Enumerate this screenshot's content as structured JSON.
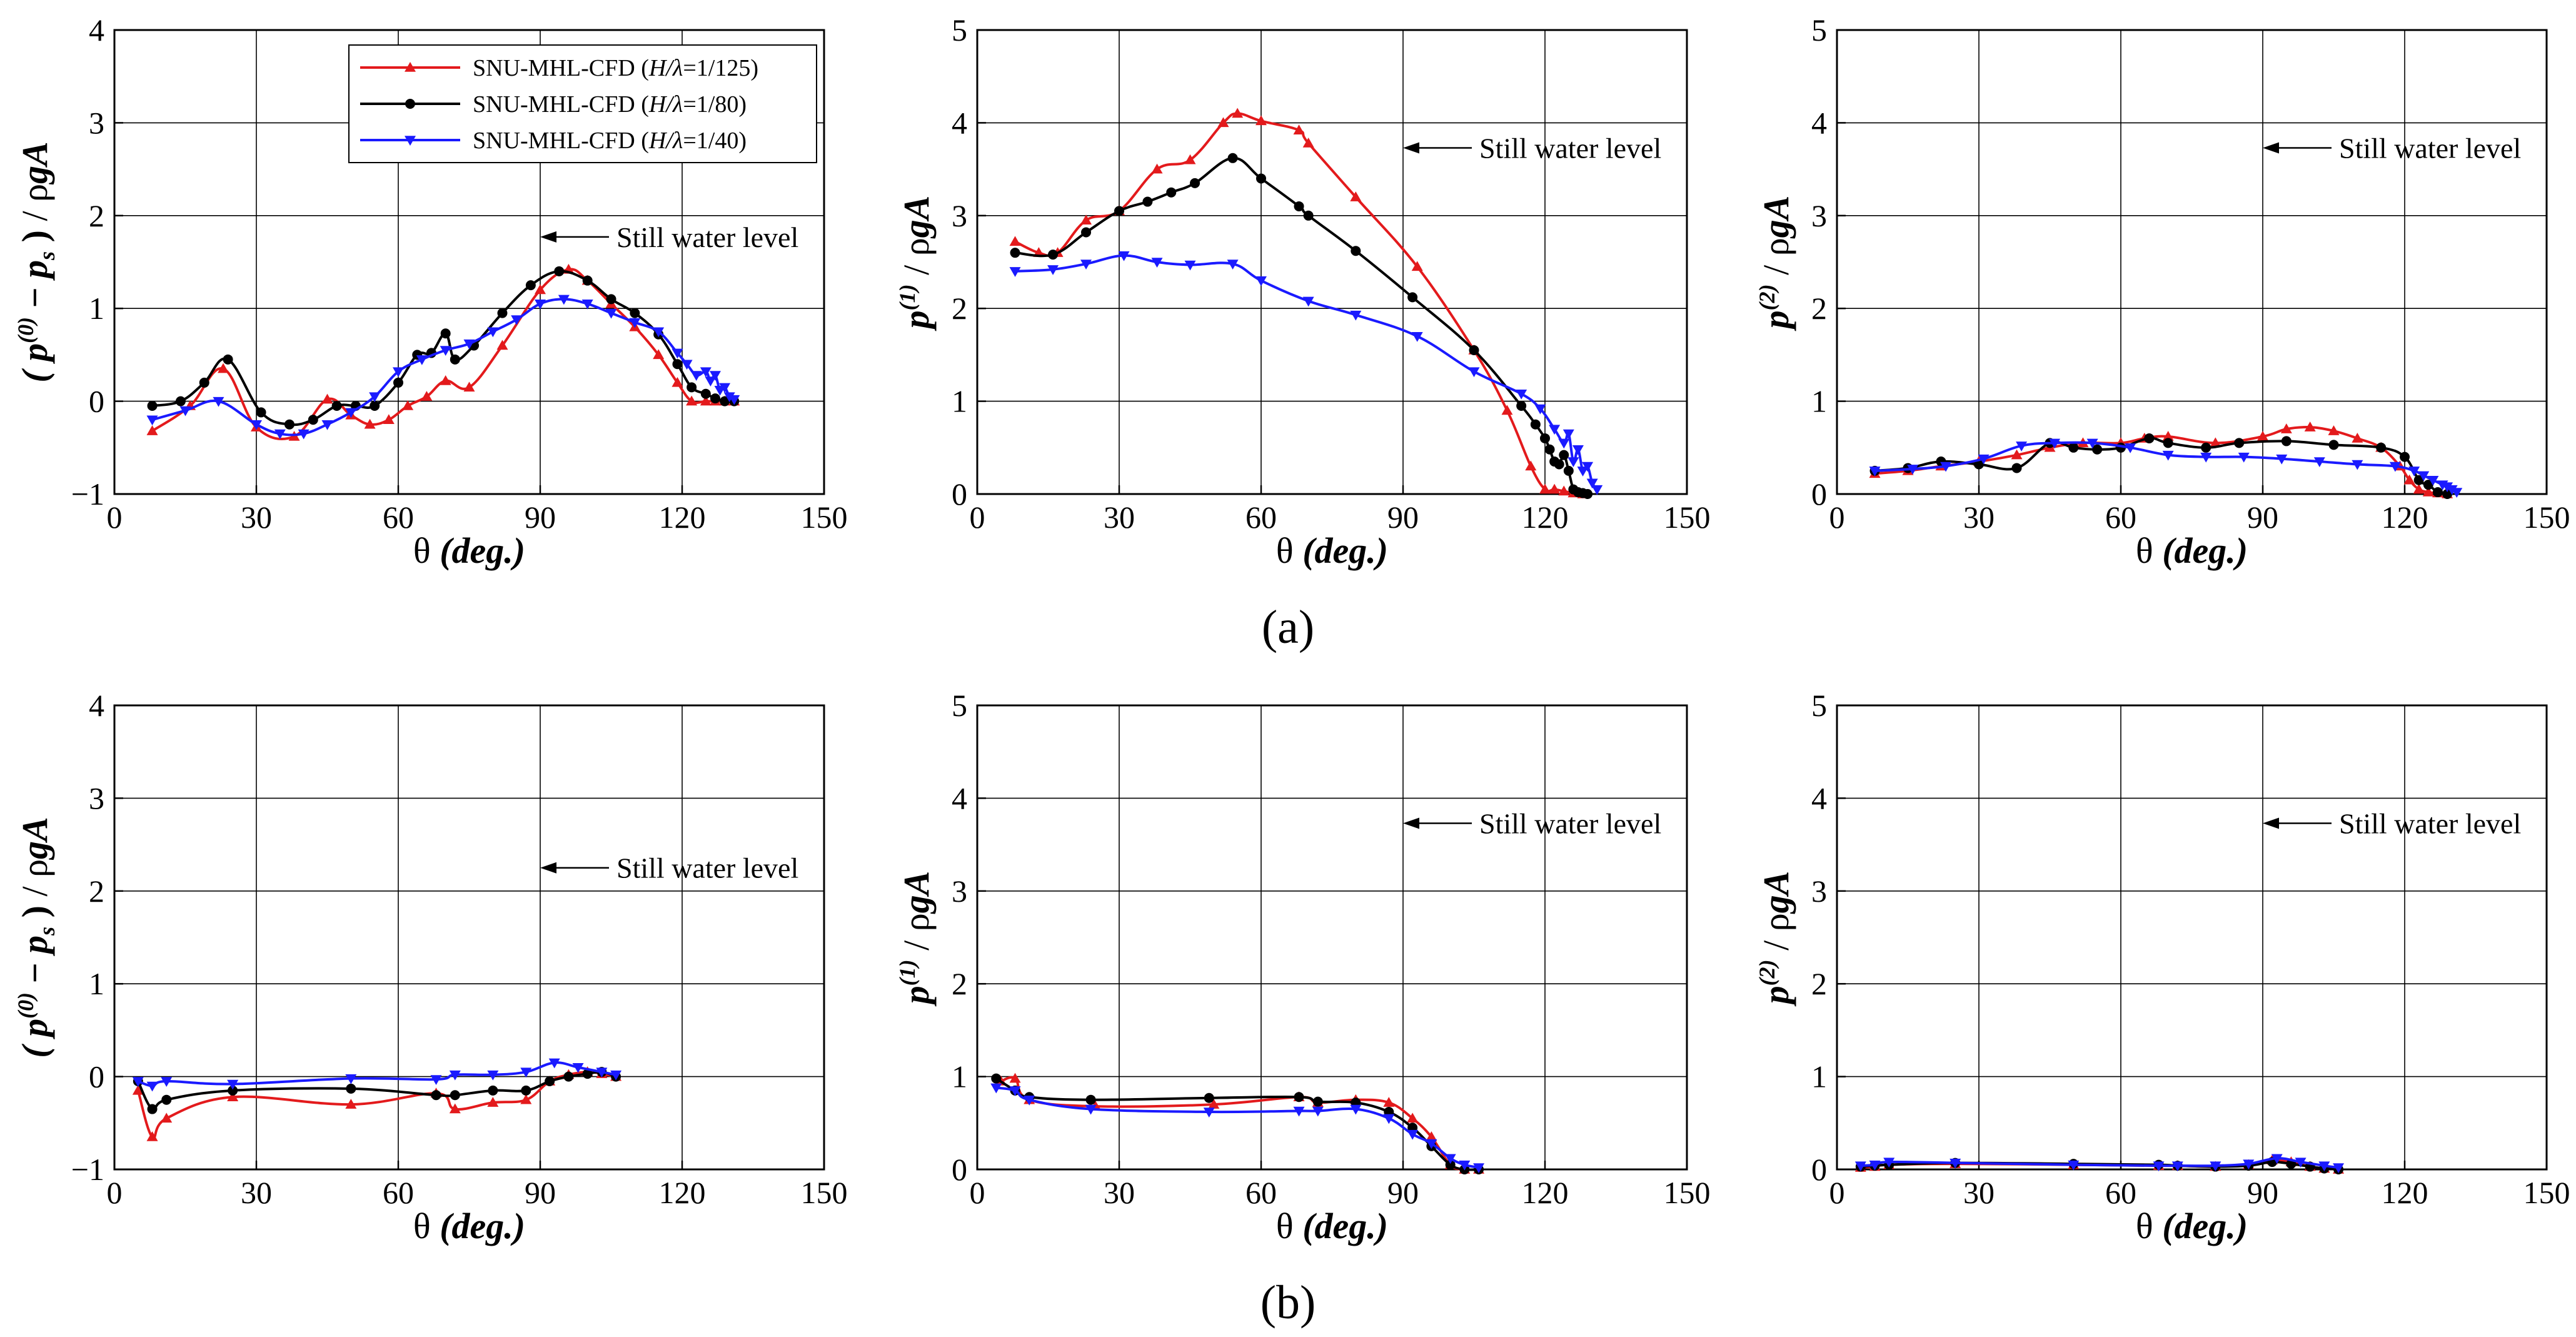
{
  "series_styles": [
    {
      "name": "SNU-MHL-CFD (H/λ=1/125)",
      "name_prefix": "SNU-MHL-CFD (",
      "name_italic": "H/λ",
      "name_suffix": "=1/125)",
      "color": "#e31a1c",
      "marker": "triangle-up"
    },
    {
      "name": "SNU-MHL-CFD (H/λ=1/80)",
      "name_prefix": "SNU-MHL-CFD (",
      "name_italic": "H/λ",
      "name_suffix": "=1/80)",
      "color": "#000000",
      "marker": "circle"
    },
    {
      "name": "SNU-MHL-CFD (H/λ=1/40)",
      "name_prefix": "SNU-MHL-CFD (",
      "name_italic": "H/λ",
      "name_suffix": "=1/40)",
      "color": "#1a1aff",
      "marker": "triangle-down"
    }
  ],
  "panel_labels": [
    "(a)",
    "(b)"
  ],
  "chart_data": [
    {
      "type": "line",
      "row": "a",
      "legend": "top-right",
      "xlabel": "θ (deg.)",
      "xlabel_prefix": "θ ",
      "xlabel_italic": "(deg.)",
      "ylabel": "( p(0) − ps ) / ρgA",
      "xlim": [
        0,
        150
      ],
      "ylim": [
        -1,
        4
      ],
      "xticks": [
        0,
        30,
        60,
        90,
        120,
        150
      ],
      "yticks": [
        -1,
        0,
        1,
        2,
        3,
        4
      ],
      "xtick_labels": [
        "0",
        "30",
        "60",
        "90",
        "120",
        "150"
      ],
      "ytick_labels": [
        "−1",
        "0",
        "1",
        "2",
        "3",
        "4"
      ],
      "grid": true,
      "annotation": {
        "text": "Still water level",
        "x": 90,
        "y": 1.77
      },
      "series": [
        {
          "x": [
            8,
            16,
            23,
            30,
            38,
            45,
            50,
            54,
            58,
            62,
            66,
            70,
            75,
            82,
            90,
            96,
            100,
            105,
            110,
            115,
            119,
            122,
            125,
            127,
            129,
            131
          ],
          "y": [
            -0.32,
            -0.05,
            0.35,
            -0.28,
            -0.38,
            0.02,
            -0.15,
            -0.25,
            -0.2,
            -0.05,
            0.05,
            0.22,
            0.15,
            0.6,
            1.2,
            1.42,
            1.3,
            1.05,
            0.8,
            0.5,
            0.2,
            0.0,
            0.0,
            0.0,
            0.0,
            0.0
          ]
        },
        {
          "x": [
            8,
            14,
            19,
            24,
            31,
            37,
            42,
            47,
            51,
            55,
            60,
            64,
            67,
            70,
            72,
            76,
            82,
            88,
            94,
            100,
            105,
            110,
            115,
            119,
            122,
            125,
            127,
            129,
            131
          ],
          "y": [
            -0.05,
            0.0,
            0.2,
            0.45,
            -0.12,
            -0.25,
            -0.2,
            -0.05,
            -0.05,
            -0.05,
            0.2,
            0.5,
            0.52,
            0.73,
            0.45,
            0.6,
            0.95,
            1.25,
            1.4,
            1.3,
            1.1,
            0.95,
            0.72,
            0.4,
            0.15,
            0.08,
            0.03,
            0.0,
            0.0
          ]
        },
        {
          "x": [
            8,
            15,
            22,
            30,
            35,
            40,
            45,
            50,
            55,
            60,
            65,
            70,
            75,
            80,
            85,
            90,
            95,
            100,
            105,
            110,
            115,
            119,
            121,
            123,
            125,
            126,
            127,
            128,
            129,
            130,
            131
          ],
          "y": [
            -0.2,
            -0.1,
            0.0,
            -0.25,
            -0.35,
            -0.35,
            -0.25,
            -0.12,
            0.05,
            0.32,
            0.45,
            0.55,
            0.62,
            0.75,
            0.88,
            1.05,
            1.1,
            1.05,
            0.95,
            0.85,
            0.75,
            0.52,
            0.4,
            0.28,
            0.32,
            0.22,
            0.28,
            0.12,
            0.15,
            0.05,
            0.02
          ]
        }
      ]
    },
    {
      "type": "line",
      "row": "a",
      "xlabel": "θ (deg.)",
      "xlabel_prefix": "θ ",
      "xlabel_italic": "(deg.)",
      "ylabel": "p(1) / ρgA",
      "xlim": [
        0,
        150
      ],
      "ylim": [
        0,
        5
      ],
      "xticks": [
        0,
        30,
        60,
        90,
        120,
        150
      ],
      "yticks": [
        0,
        1,
        2,
        3,
        4,
        5
      ],
      "xtick_labels": [
        "0",
        "30",
        "60",
        "90",
        "120",
        "150"
      ],
      "ytick_labels": [
        "0",
        "1",
        "2",
        "3",
        "4",
        "5"
      ],
      "grid": true,
      "annotation": {
        "text": "Still water level",
        "x": 90,
        "y": 3.73
      },
      "series": [
        {
          "x": [
            8,
            13,
            17,
            23,
            30,
            38,
            45,
            52,
            55,
            60,
            68,
            70,
            80,
            93,
            105,
            112,
            117,
            120,
            122,
            124,
            126,
            128
          ],
          "y": [
            2.72,
            2.6,
            2.6,
            2.95,
            3.05,
            3.5,
            3.6,
            4.0,
            4.1,
            4.02,
            3.92,
            3.78,
            3.2,
            2.45,
            1.55,
            0.9,
            0.3,
            0.05,
            0.05,
            0.03,
            0.01,
            0.0
          ]
        },
        {
          "x": [
            8,
            16,
            23,
            30,
            36,
            41,
            46,
            54,
            60,
            68,
            70,
            80,
            92,
            105,
            115,
            118,
            120,
            121,
            122,
            123,
            124,
            125,
            126,
            127,
            128,
            129
          ],
          "y": [
            2.6,
            2.58,
            2.82,
            3.05,
            3.15,
            3.25,
            3.35,
            3.62,
            3.4,
            3.1,
            3.0,
            2.62,
            2.12,
            1.55,
            0.95,
            0.75,
            0.6,
            0.48,
            0.35,
            0.32,
            0.42,
            0.25,
            0.05,
            0.02,
            0.01,
            0.0
          ]
        },
        {
          "x": [
            8,
            16,
            23,
            31,
            38,
            45,
            54,
            60,
            70,
            80,
            93,
            105,
            115,
            119,
            122,
            124,
            125,
            126,
            127,
            128,
            129,
            130,
            131
          ],
          "y": [
            2.4,
            2.42,
            2.48,
            2.57,
            2.5,
            2.47,
            2.48,
            2.3,
            2.08,
            1.93,
            1.7,
            1.32,
            1.08,
            0.92,
            0.7,
            0.55,
            0.65,
            0.35,
            0.48,
            0.25,
            0.3,
            0.12,
            0.05
          ]
        }
      ]
    },
    {
      "type": "line",
      "row": "a",
      "xlabel": "θ (deg.)",
      "xlabel_prefix": "θ ",
      "xlabel_italic": "(deg.)",
      "ylabel": "p(2) / ρgA",
      "xlim": [
        0,
        150
      ],
      "ylim": [
        0,
        5
      ],
      "xticks": [
        0,
        30,
        60,
        90,
        120,
        150
      ],
      "yticks": [
        0,
        1,
        2,
        3,
        4,
        5
      ],
      "xtick_labels": [
        "0",
        "30",
        "60",
        "90",
        "120",
        "150"
      ],
      "ytick_labels": [
        "0",
        "1",
        "2",
        "3",
        "4",
        "5"
      ],
      "grid": true,
      "annotation": {
        "text": "Still water level",
        "x": 90,
        "y": 3.73
      },
      "series": [
        {
          "x": [
            8,
            15,
            22,
            30,
            38,
            45,
            52,
            60,
            65,
            70,
            80,
            90,
            95,
            100,
            105,
            110,
            115,
            119,
            121,
            123,
            125,
            127,
            129
          ],
          "y": [
            0.22,
            0.25,
            0.3,
            0.35,
            0.42,
            0.5,
            0.55,
            0.55,
            0.6,
            0.62,
            0.55,
            0.62,
            0.7,
            0.72,
            0.68,
            0.6,
            0.5,
            0.3,
            0.15,
            0.05,
            0.02,
            0.01,
            0.0
          ]
        },
        {
          "x": [
            8,
            15,
            22,
            30,
            38,
            45,
            50,
            55,
            60,
            66,
            70,
            78,
            85,
            95,
            105,
            115,
            120,
            123,
            125,
            127,
            129
          ],
          "y": [
            0.25,
            0.28,
            0.35,
            0.32,
            0.28,
            0.55,
            0.5,
            0.48,
            0.5,
            0.6,
            0.55,
            0.5,
            0.55,
            0.57,
            0.53,
            0.5,
            0.4,
            0.15,
            0.1,
            0.02,
            0.0
          ]
        },
        {
          "x": [
            8,
            16,
            23,
            31,
            39,
            46,
            54,
            62,
            70,
            78,
            86,
            94,
            102,
            110,
            118,
            122,
            124,
            126,
            128,
            129,
            130,
            131
          ],
          "y": [
            0.25,
            0.27,
            0.3,
            0.38,
            0.52,
            0.55,
            0.55,
            0.5,
            0.42,
            0.4,
            0.4,
            0.38,
            0.35,
            0.32,
            0.3,
            0.25,
            0.2,
            0.15,
            0.1,
            0.08,
            0.05,
            0.02
          ]
        }
      ]
    },
    {
      "type": "line",
      "row": "b",
      "xlabel": "θ (deg.)",
      "xlabel_prefix": "θ ",
      "xlabel_italic": "(deg.)",
      "ylabel": "( p(0) − ps ) / ρgA",
      "xlim": [
        0,
        150
      ],
      "ylim": [
        -1,
        4
      ],
      "xticks": [
        0,
        30,
        60,
        90,
        120,
        150
      ],
      "yticks": [
        -1,
        0,
        1,
        2,
        3,
        4
      ],
      "xtick_labels": [
        "0",
        "30",
        "60",
        "90",
        "120",
        "150"
      ],
      "ytick_labels": [
        "−1",
        "0",
        "1",
        "2",
        "3",
        "4"
      ],
      "grid": true,
      "annotation": {
        "text": "Still water level",
        "x": 90,
        "y": 2.25
      },
      "series": [
        {
          "x": [
            5,
            8,
            11,
            25,
            50,
            68,
            72,
            80,
            87,
            92,
            96,
            100,
            103,
            106
          ],
          "y": [
            -0.15,
            -0.65,
            -0.45,
            -0.22,
            -0.3,
            -0.18,
            -0.35,
            -0.28,
            -0.25,
            -0.05,
            0.02,
            0.05,
            0.03,
            0.0
          ]
        },
        {
          "x": [
            5,
            8,
            11,
            25,
            50,
            68,
            72,
            80,
            87,
            92,
            96,
            100,
            103,
            106
          ],
          "y": [
            -0.05,
            -0.35,
            -0.25,
            -0.15,
            -0.13,
            -0.2,
            -0.2,
            -0.15,
            -0.15,
            -0.05,
            0.0,
            0.03,
            0.05,
            0.0
          ]
        },
        {
          "x": [
            5,
            8,
            11,
            25,
            50,
            68,
            72,
            80,
            87,
            93,
            98,
            103,
            106
          ],
          "y": [
            -0.05,
            -0.1,
            -0.05,
            -0.08,
            -0.02,
            -0.03,
            0.02,
            0.02,
            0.05,
            0.15,
            0.1,
            0.05,
            0.02
          ]
        }
      ]
    },
    {
      "type": "line",
      "row": "b",
      "xlabel": "θ (deg.)",
      "xlabel_prefix": "θ ",
      "xlabel_italic": "(deg.)",
      "ylabel": "p(1) / ρgA",
      "xlim": [
        0,
        150
      ],
      "ylim": [
        0,
        5
      ],
      "xticks": [
        0,
        30,
        60,
        90,
        120,
        150
      ],
      "yticks": [
        0,
        1,
        2,
        3,
        4,
        5
      ],
      "xtick_labels": [
        "0",
        "30",
        "60",
        "90",
        "120",
        "150"
      ],
      "ytick_labels": [
        "0",
        "1",
        "2",
        "3",
        "4",
        "5"
      ],
      "grid": true,
      "annotation": {
        "text": "Still water level",
        "x": 90,
        "y": 3.73
      },
      "series": [
        {
          "x": [
            5,
            8,
            11,
            25,
            50,
            68,
            72,
            80,
            87,
            92,
            96,
            100,
            103,
            106
          ],
          "y": [
            0.95,
            0.98,
            0.75,
            0.68,
            0.7,
            0.78,
            0.72,
            0.75,
            0.72,
            0.55,
            0.35,
            0.05,
            0.0,
            0.0
          ]
        },
        {
          "x": [
            4,
            8,
            11,
            24,
            49,
            68,
            72,
            80,
            87,
            92,
            96,
            100,
            103,
            106
          ],
          "y": [
            0.98,
            0.85,
            0.78,
            0.75,
            0.77,
            0.78,
            0.73,
            0.72,
            0.62,
            0.45,
            0.25,
            0.05,
            0.0,
            0.0
          ]
        },
        {
          "x": [
            4,
            8,
            11,
            24,
            49,
            68,
            72,
            80,
            87,
            92,
            96,
            100,
            103,
            106
          ],
          "y": [
            0.88,
            0.85,
            0.75,
            0.65,
            0.62,
            0.63,
            0.63,
            0.65,
            0.55,
            0.38,
            0.28,
            0.12,
            0.05,
            0.02
          ]
        }
      ]
    },
    {
      "type": "line",
      "row": "b",
      "xlabel": "θ (deg.)",
      "xlabel_prefix": "θ ",
      "xlabel_italic": "(deg.)",
      "ylabel": "p(2) / ρgA",
      "xlim": [
        0,
        150
      ],
      "ylim": [
        0,
        5
      ],
      "xticks": [
        0,
        30,
        60,
        90,
        120,
        150
      ],
      "yticks": [
        0,
        1,
        2,
        3,
        4,
        5
      ],
      "xtick_labels": [
        "0",
        "30",
        "60",
        "90",
        "120",
        "150"
      ],
      "ytick_labels": [
        "0",
        "1",
        "2",
        "3",
        "4",
        "5"
      ],
      "grid": true,
      "annotation": {
        "text": "Still water level",
        "x": 90,
        "y": 3.73
      },
      "series": [
        {
          "x": [
            5,
            8,
            11,
            25,
            50,
            68,
            72,
            80,
            87,
            92,
            96,
            100,
            103,
            106
          ],
          "y": [
            0.02,
            0.03,
            0.05,
            0.06,
            0.05,
            0.04,
            0.04,
            0.03,
            0.05,
            0.1,
            0.08,
            0.03,
            0.01,
            0.0
          ]
        },
        {
          "x": [
            5,
            8,
            11,
            25,
            50,
            68,
            72,
            80,
            87,
            92,
            96,
            100,
            103,
            106
          ],
          "y": [
            0.03,
            0.04,
            0.05,
            0.07,
            0.06,
            0.05,
            0.04,
            0.03,
            0.04,
            0.08,
            0.06,
            0.03,
            0.01,
            0.0
          ]
        },
        {
          "x": [
            5,
            8,
            11,
            25,
            50,
            68,
            72,
            80,
            87,
            93,
            98,
            103,
            106
          ],
          "y": [
            0.04,
            0.05,
            0.08,
            0.07,
            0.05,
            0.04,
            0.04,
            0.04,
            0.06,
            0.12,
            0.08,
            0.04,
            0.02
          ]
        }
      ]
    }
  ]
}
